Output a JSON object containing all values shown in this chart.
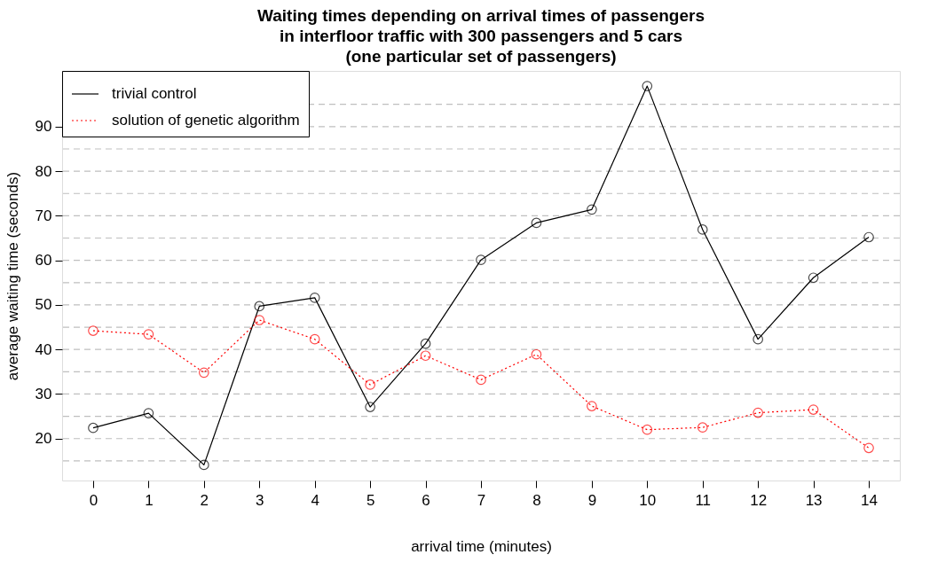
{
  "chart_data": {
    "type": "line",
    "title": [
      "Waiting times depending on arrival times of passengers",
      "in interfloor traffic with 300 passengers and 5 cars",
      "(one particular set of passengers)"
    ],
    "xlabel": "arrival time (minutes)",
    "ylabel": "average waiting time (seconds)",
    "x": [
      0,
      1,
      2,
      3,
      4,
      5,
      6,
      7,
      8,
      9,
      10,
      11,
      12,
      13,
      14
    ],
    "series": [
      {
        "name": "trivial control",
        "color": "#000000",
        "line_style": "solid",
        "values": [
          22.4,
          25.7,
          14.1,
          49.7,
          51.6,
          27.1,
          41.3,
          60.1,
          68.4,
          71.4,
          99.1,
          66.9,
          42.3,
          56.1,
          65.2
        ]
      },
      {
        "name": "solution of genetic algorithm",
        "color": "#ff0000",
        "line_style": "dotted",
        "values": [
          44.2,
          43.4,
          34.8,
          46.6,
          42.3,
          32.1,
          38.6,
          33.2,
          38.9,
          27.3,
          22.0,
          22.5,
          25.8,
          26.5,
          17.9
        ]
      }
    ],
    "xlim": [
      -0.56,
      14.56
    ],
    "xticks": [
      0,
      1,
      2,
      3,
      4,
      5,
      6,
      7,
      8,
      9,
      10,
      11,
      12,
      13,
      14
    ],
    "ylim": [
      10.6,
      102.5
    ],
    "yticks": [
      {
        "value": 15,
        "label": null
      },
      20,
      {
        "value": 25,
        "label": null
      },
      30,
      {
        "value": 35,
        "label": null
      },
      40,
      {
        "value": 45,
        "label": null
      },
      50,
      {
        "value": 55,
        "label": null
      },
      60,
      {
        "value": 65,
        "label": null
      },
      70,
      {
        "value": 75,
        "label": null
      },
      80,
      {
        "value": 85,
        "label": null
      },
      90,
      {
        "value": 95,
        "label": null
      }
    ],
    "grid": "y",
    "marker": "circle",
    "legend": "top left"
  }
}
